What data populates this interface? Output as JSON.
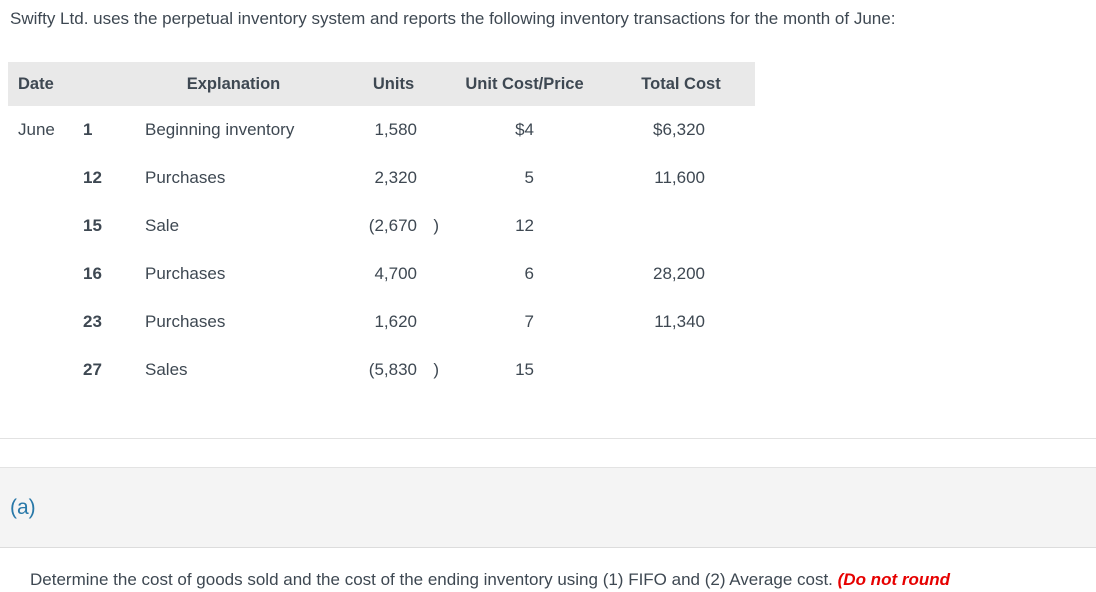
{
  "intro": "Swifty Ltd. uses the perpetual inventory system and reports the following inventory transactions for the month of June:",
  "table": {
    "headers": {
      "date": "Date",
      "explanation": "Explanation",
      "units": "Units",
      "unit_cost": "Unit Cost/Price",
      "total_cost": "Total Cost"
    },
    "rows": [
      {
        "month": "June",
        "day": "1",
        "explanation": "Beginning inventory",
        "units": "1,580",
        "units_close": "",
        "unit_cost": "$4",
        "total_cost": "$6,320"
      },
      {
        "month": "",
        "day": "12",
        "explanation": "Purchases",
        "units": "2,320",
        "units_close": "",
        "unit_cost": "5",
        "total_cost": "11,600"
      },
      {
        "month": "",
        "day": "15",
        "explanation": "Sale",
        "units": "(2,670",
        "units_close": ")",
        "unit_cost": "12",
        "total_cost": ""
      },
      {
        "month": "",
        "day": "16",
        "explanation": "Purchases",
        "units": "4,700",
        "units_close": "",
        "unit_cost": "6",
        "total_cost": "28,200"
      },
      {
        "month": "",
        "day": "23",
        "explanation": "Purchases",
        "units": "1,620",
        "units_close": "",
        "unit_cost": "7",
        "total_cost": "11,340"
      },
      {
        "month": "",
        "day": "27",
        "explanation": "Sales",
        "units": "(5,830",
        "units_close": ")",
        "unit_cost": "15",
        "total_cost": ""
      }
    ]
  },
  "section": {
    "label": "(a)"
  },
  "question": {
    "normal": "Determine the cost of goods sold and the cost of the ending inventory using (1) FIFO and (2) Average cost. ",
    "emphasis": "(Do not round"
  },
  "colors": {
    "accent_blue": "#2878a8",
    "alert_red": "#e60000",
    "header_bg": "#e9e9e9",
    "section_bg": "#f4f4f4"
  }
}
